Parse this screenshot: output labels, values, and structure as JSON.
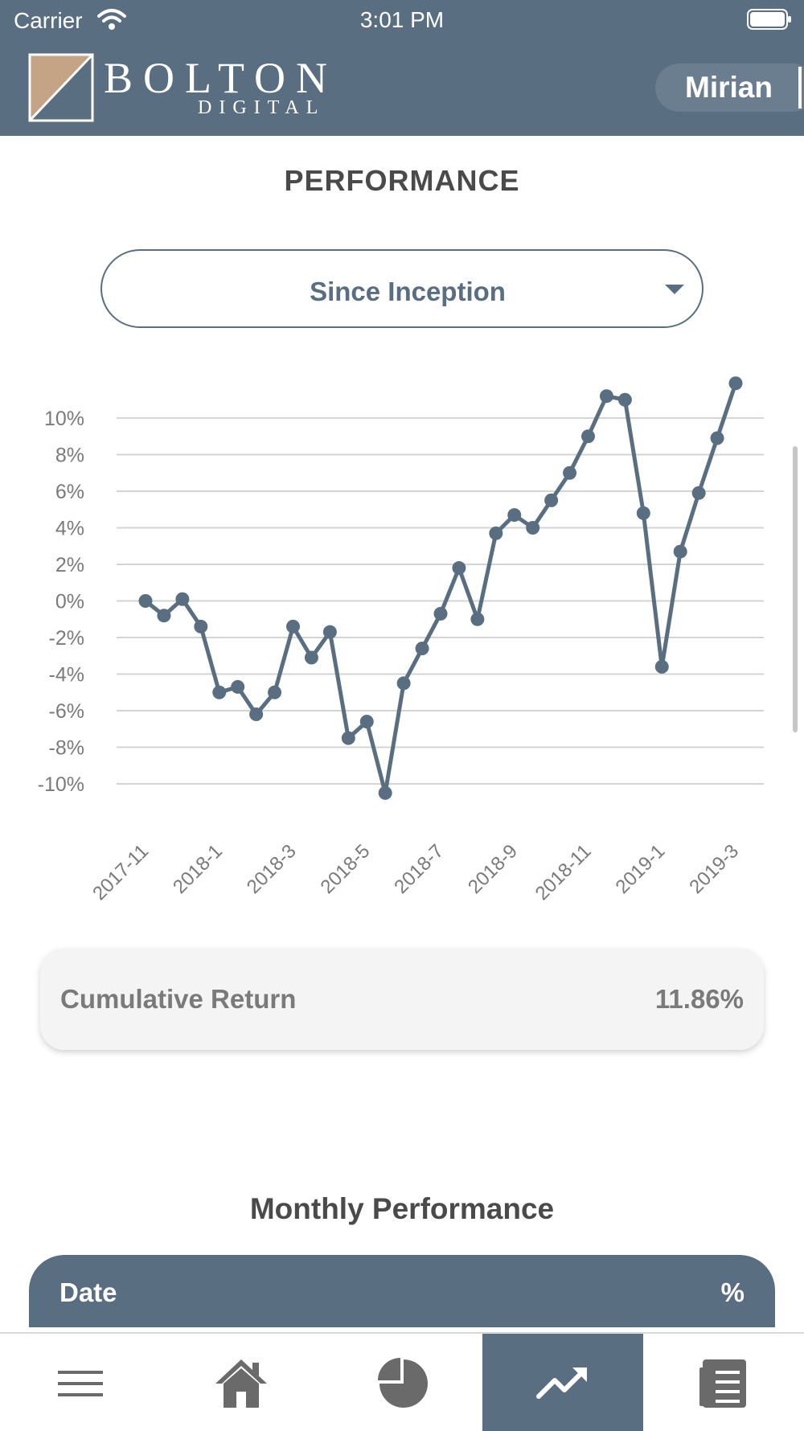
{
  "status_bar": {
    "carrier": "Carrier",
    "time": "3:01 PM"
  },
  "header": {
    "logo_top": "BOLTON",
    "logo_sub": "DIGITAL",
    "user": "Mirian"
  },
  "page": {
    "title": "PERFORMANCE"
  },
  "period_select": {
    "selected": "Since Inception"
  },
  "chart_data": {
    "type": "line",
    "title": "",
    "xlabel": "",
    "ylabel": "",
    "ylim": [
      -10,
      10
    ],
    "y_ticks": [
      "10%",
      "8%",
      "6%",
      "4%",
      "2%",
      "0%",
      "-2%",
      "-4%",
      "-6%",
      "-8%",
      "-10%"
    ],
    "x_ticks": [
      "2017-11",
      "2018-1",
      "2018-3",
      "2018-5",
      "2018-7",
      "2018-9",
      "2018-11",
      "2019-1",
      "2019-3"
    ],
    "grid": true,
    "legend": "none",
    "series": [
      {
        "color": "#596e80",
        "values": [
          0.0,
          -0.8,
          0.1,
          -1.4,
          -5.0,
          -4.7,
          -6.2,
          -5.0,
          -1.4,
          -3.1,
          -1.7,
          -7.5,
          -6.6,
          -10.5,
          -4.5,
          -2.6,
          -0.7,
          1.8,
          -1.0,
          3.7,
          4.7,
          4.0,
          5.5,
          7.0,
          9.0,
          11.2,
          11.0,
          4.8,
          -3.6,
          2.7,
          5.9,
          8.9,
          11.9
        ]
      }
    ]
  },
  "summary": {
    "label": "Cumulative Return",
    "value": "11.86%"
  },
  "monthly": {
    "title": "Monthly Performance",
    "col_date": "Date",
    "col_pct": "%"
  },
  "tabbar": {
    "tabs": [
      {
        "icon": "menu-icon",
        "active": false
      },
      {
        "icon": "home-icon",
        "active": false
      },
      {
        "icon": "pie-chart-icon",
        "active": false
      },
      {
        "icon": "trending-up-icon",
        "active": true
      },
      {
        "icon": "document-list-icon",
        "active": false
      }
    ]
  },
  "colors": {
    "brand": "#596e80",
    "logo_tan": "#c4a484"
  }
}
